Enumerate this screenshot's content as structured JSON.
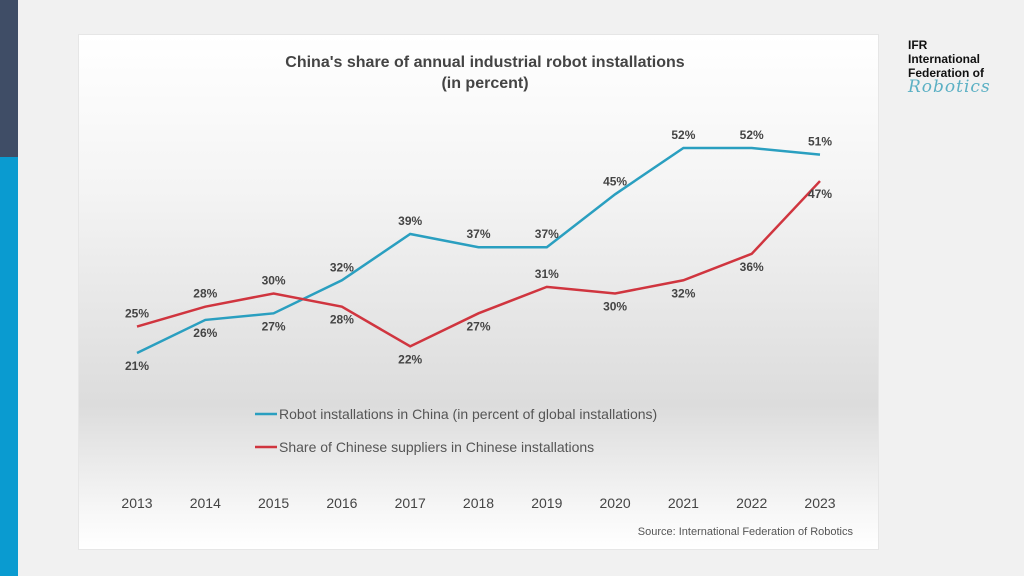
{
  "logo": {
    "line1": "IFR",
    "line2": "International",
    "line3": "Federation of",
    "line4": "Robotics"
  },
  "source": "Source: International Federation of Robotics",
  "colors": {
    "blue": "#2a9fc0",
    "red": "#d0353f",
    "sidebar_dark": "#3f4d66",
    "sidebar_blue": "#0a9bd0"
  },
  "chart_data": {
    "type": "line",
    "title": "China's share of annual industrial robot installations",
    "subtitle": "(in percent)",
    "categories": [
      "2013",
      "2014",
      "2015",
      "2016",
      "2017",
      "2018",
      "2019",
      "2020",
      "2021",
      "2022",
      "2023"
    ],
    "series": [
      {
        "name": "Robot installations in China (in percent of global installations)",
        "color": "#2a9fc0",
        "values": [
          21,
          26,
          27,
          32,
          39,
          37,
          37,
          45,
          52,
          52,
          51
        ]
      },
      {
        "name": "Share of Chinese suppliers in Chinese installations",
        "color": "#d0353f",
        "values": [
          25,
          28,
          30,
          28,
          22,
          27,
          31,
          30,
          32,
          36,
          47
        ]
      }
    ],
    "value_suffix": "%",
    "grid": false,
    "legend_position": "bottom-center"
  }
}
